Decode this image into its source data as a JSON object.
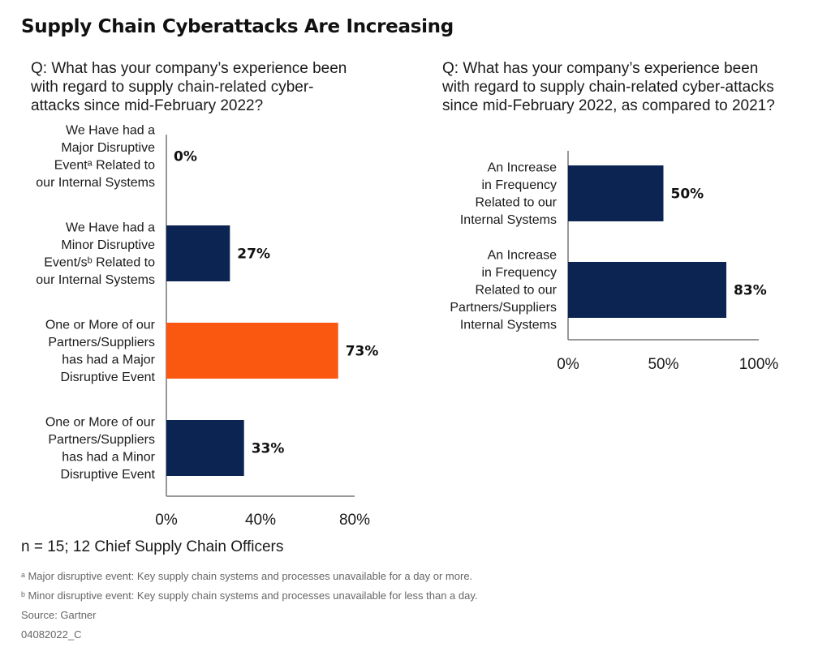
{
  "title": "Supply Chain Cyberattacks Are Increasing",
  "sample_note": "n = 15; 12 Chief Supply Chain Officers",
  "footnotes": {
    "a": "ᵃ Major disruptive event: Key supply chain systems and processes unavailable for a day or more.",
    "b": "ᵇ Minor disruptive event: Key supply chain systems and processes unavailable for less than a day."
  },
  "source": "Source: Gartner",
  "code": "04082022_C",
  "colors": {
    "navy": "#0b2452",
    "orange": "#fa5711",
    "axis": "#777777"
  },
  "chart_data": [
    {
      "type": "bar",
      "orientation": "horizontal",
      "question": "Q: What has your company’s experience been with regard to supply chain-related cyber-attacks since mid-February 2022?",
      "categories": [
        [
          "We Have had a",
          "Major Disruptive",
          "Eventᵃ Related to",
          "our Internal Systems"
        ],
        [
          "We Have had a",
          "Minor Disruptive",
          "Event/sᵇ Related to",
          "our Internal Systems"
        ],
        [
          "One or More of our",
          "Partners/Suppliers",
          "has had a Major",
          "Disruptive Event"
        ],
        [
          "One or More of our",
          "Partners/Suppliers",
          "has had a Minor",
          "Disruptive Event"
        ]
      ],
      "values": [
        0,
        27,
        73,
        33
      ],
      "value_labels": [
        "0%",
        "27%",
        "73%",
        "33%"
      ],
      "bar_colors": [
        "#0b2452",
        "#0b2452",
        "#fa5711",
        "#0b2452"
      ],
      "xlim": [
        0,
        80
      ],
      "xticks": [
        0,
        40,
        80
      ],
      "xtick_labels": [
        "0%",
        "40%",
        "80%"
      ],
      "grid": false
    },
    {
      "type": "bar",
      "orientation": "horizontal",
      "question": "Q: What has your company’s experience been with regard to supply chain-related cyber-attacks since mid-February 2022, as compared to 2021?",
      "categories": [
        [
          "An Increase",
          "in Frequency",
          "Related to our",
          "Internal Systems"
        ],
        [
          "An Increase",
          "in Frequency",
          "Related to our",
          "Partners/Suppliers",
          "Internal Systems"
        ]
      ],
      "values": [
        50,
        83
      ],
      "value_labels": [
        "50%",
        "83%"
      ],
      "bar_colors": [
        "#0b2452",
        "#0b2452"
      ],
      "xlim": [
        0,
        100
      ],
      "xticks": [
        0,
        50,
        100
      ],
      "xtick_labels": [
        "0%",
        "50%",
        "100%"
      ],
      "grid": false
    }
  ]
}
